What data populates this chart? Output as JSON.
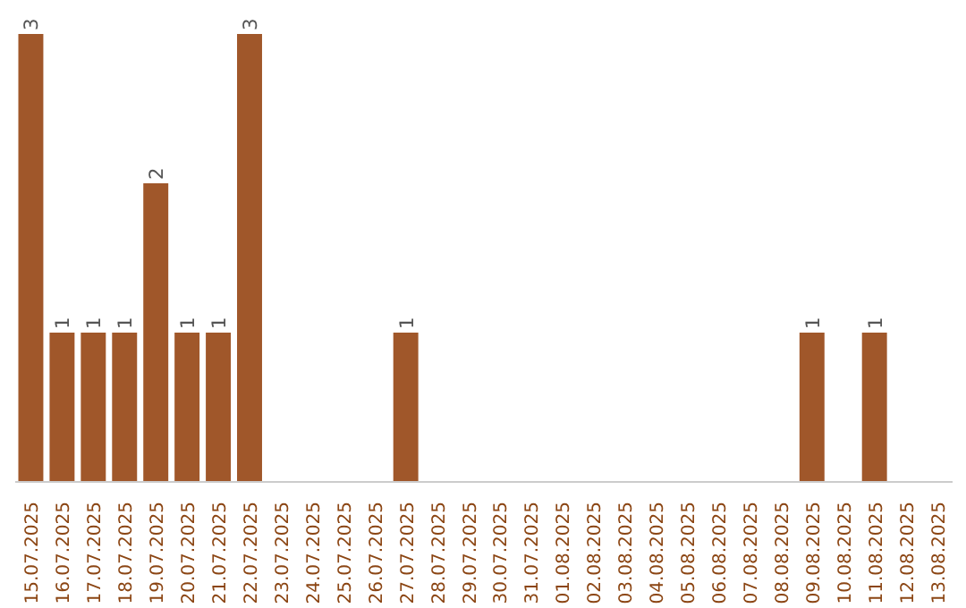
{
  "chart_data": {
    "type": "bar",
    "categories": [
      "15.07.2025",
      "16.07.2025",
      "17.07.2025",
      "18.07.2025",
      "19.07.2025",
      "20.07.2025",
      "21.07.2025",
      "22.07.2025",
      "23.07.2025",
      "24.07.2025",
      "25.07.2025",
      "26.07.2025",
      "27.07.2025",
      "28.07.2025",
      "29.07.2025",
      "30.07.2025",
      "31.07.2025",
      "01.08.2025",
      "02.08.2025",
      "03.08.2025",
      "04.08.2025",
      "05.08.2025",
      "06.08.2025",
      "07.08.2025",
      "08.08.2025",
      "09.08.2025",
      "10.08.2025",
      "11.08.2025",
      "12.08.2025",
      "13.08.2025"
    ],
    "values": [
      3,
      1,
      1,
      1,
      2,
      1,
      1,
      3,
      null,
      null,
      null,
      null,
      1,
      null,
      null,
      null,
      null,
      null,
      null,
      null,
      null,
      null,
      null,
      null,
      null,
      1,
      null,
      1,
      null,
      null
    ],
    "color": "#a0572a",
    "data_labels": true,
    "grid": false
  }
}
